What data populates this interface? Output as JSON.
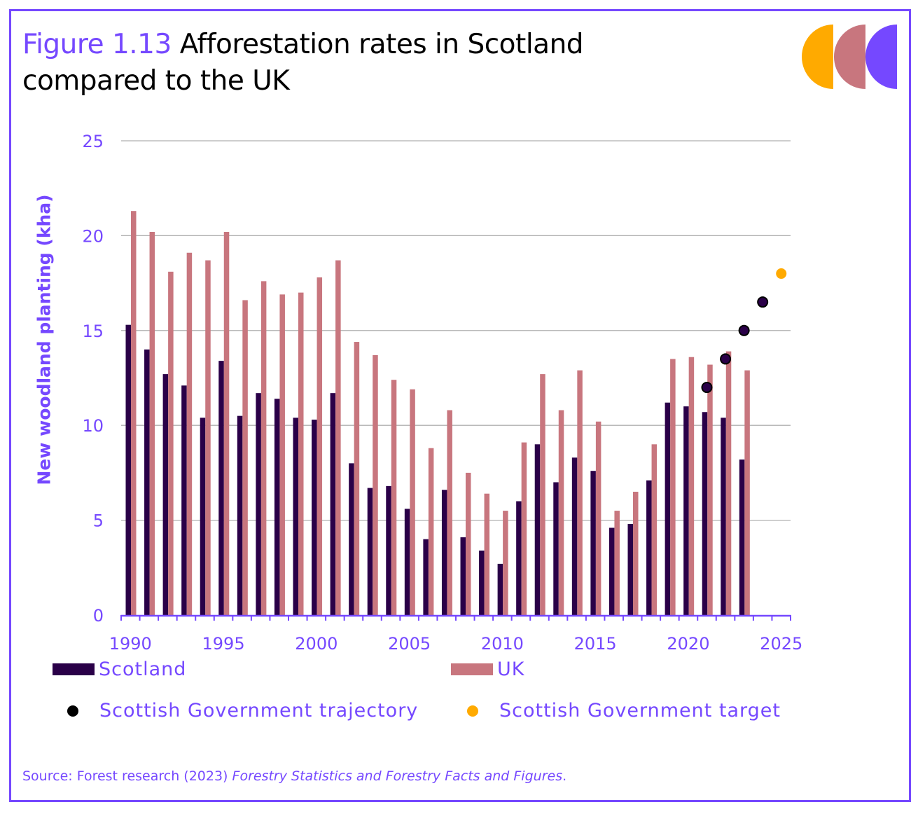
{
  "header": {
    "figure_label": "Figure 1.13",
    "title_line1": " Afforestation rates in Scotland",
    "title_line2": "compared to the UK"
  },
  "logo": {
    "icon": "three-half-circles-logo",
    "colors": [
      "#ffaa00",
      "#c8767e",
      "#7548ff"
    ]
  },
  "colors": {
    "accent": "#7548ff",
    "scotland": "#2a0048",
    "uk": "#c8767e",
    "trajectory": "#2a0048",
    "trajectory_outline": "#000000",
    "target": "#ffaa00",
    "grid": "#b0b0b0"
  },
  "chart_data": {
    "type": "bar",
    "title": "Afforestation rates in Scotland compared to the UK",
    "xlabel": "",
    "ylabel": "New woodland planting (kha)",
    "ylim": [
      0,
      25
    ],
    "yticks": [
      0,
      5,
      10,
      15,
      20,
      25
    ],
    "xlim": [
      1990,
      2025
    ],
    "xtick_labels": [
      "1990",
      "1995",
      "2000",
      "2005",
      "2010",
      "2015",
      "2020",
      "2025"
    ],
    "grid": true,
    "legend_position": "bottom",
    "categories": [
      "1990",
      "1991",
      "1992",
      "1993",
      "1994",
      "1995",
      "1996",
      "1997",
      "1998",
      "1999",
      "2000",
      "2001",
      "2002",
      "2003",
      "2004",
      "2005",
      "2006",
      "2007",
      "2008",
      "2009",
      "2010",
      "2011",
      "2012",
      "2013",
      "2014",
      "2015",
      "2016",
      "2017",
      "2018",
      "2019",
      "2020",
      "2021",
      "2022",
      "2023",
      "2024",
      "2025"
    ],
    "series": [
      {
        "name": "Scotland",
        "kind": "bar",
        "values": [
          15.3,
          14.0,
          12.7,
          12.1,
          10.4,
          13.4,
          10.5,
          11.7,
          11.4,
          10.4,
          10.3,
          11.7,
          8.0,
          6.7,
          6.8,
          5.6,
          4.0,
          6.6,
          4.1,
          3.4,
          2.7,
          6.0,
          9.0,
          7.0,
          8.3,
          7.6,
          4.6,
          4.8,
          7.1,
          11.2,
          11.0,
          10.7,
          10.4,
          8.2,
          null,
          null
        ]
      },
      {
        "name": "UK",
        "kind": "bar",
        "values": [
          21.3,
          20.2,
          18.1,
          19.1,
          18.7,
          20.2,
          16.6,
          17.6,
          16.9,
          17.0,
          17.8,
          18.7,
          14.4,
          13.7,
          12.4,
          11.9,
          8.8,
          10.8,
          7.5,
          6.4,
          5.5,
          9.1,
          12.7,
          10.8,
          12.9,
          10.2,
          5.5,
          6.5,
          9.0,
          13.5,
          13.6,
          13.2,
          13.9,
          12.9,
          null,
          null
        ]
      },
      {
        "name": "Scottish Government trajectory",
        "kind": "scatter",
        "points": [
          {
            "x": "2021",
            "y": 12.0
          },
          {
            "x": "2022",
            "y": 13.5
          },
          {
            "x": "2023",
            "y": 15.0
          },
          {
            "x": "2024",
            "y": 16.5
          }
        ]
      },
      {
        "name": "Scottish Government target",
        "kind": "scatter",
        "points": [
          {
            "x": "2025",
            "y": 18.0
          }
        ]
      }
    ]
  },
  "legend": {
    "scotland": "Scotland",
    "uk": "UK",
    "trajectory": "Scottish Government trajectory",
    "target": "Scottish Government target"
  },
  "source": {
    "prefix": "Source: Forest research (2023) ",
    "italic": "Forestry Statistics and Forestry Facts and Figures",
    "suffix": "."
  }
}
